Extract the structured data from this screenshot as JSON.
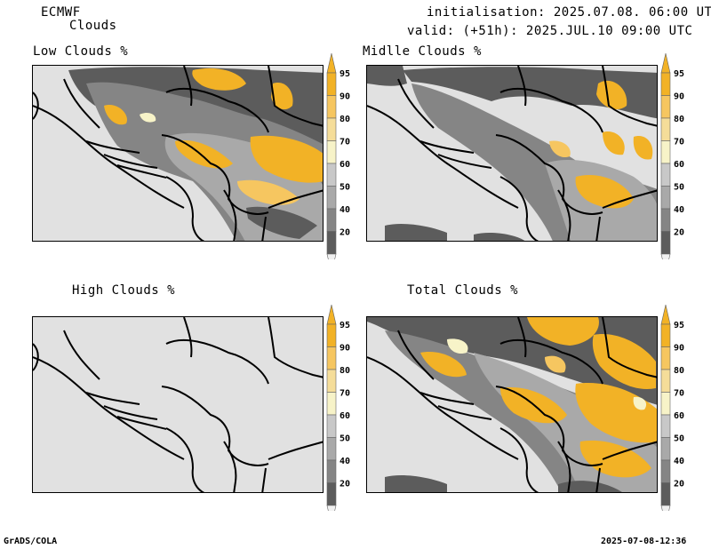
{
  "header": {
    "model": "ECMWF",
    "product": "Clouds",
    "init_line": "initialisation: 2025.07.08. 06:00 UTC",
    "valid_line": "valid: (+51h): 2025.JUL.10 09:00 UTC"
  },
  "panels": [
    {
      "key": "low",
      "title": "Low Clouds %"
    },
    {
      "key": "middle",
      "title": "Midlle Clouds %"
    },
    {
      "key": "high",
      "title": "High Clouds %"
    },
    {
      "key": "total",
      "title": "Total Clouds %"
    }
  ],
  "colorbar": {
    "levels": [
      "95",
      "90",
      "80",
      "70",
      "60",
      "50",
      "40",
      "20"
    ],
    "colors": [
      "#f2b226",
      "#f6c660",
      "#f5dd99",
      "#f7f3c8",
      "#c8c8c8",
      "#a9a9a9",
      "#858585",
      "#5c5c5c"
    ],
    "top_color": "#f2b226",
    "bottom_color": "#f0f0f0"
  },
  "footer": {
    "left": "GrADS/COLA",
    "right": "2025-07-08-12:36"
  },
  "colors": {
    "land_bg": "#e1e1e1",
    "border": "#000000",
    "dark_cloud": "#5c5c5c",
    "mid_gray": "#858585",
    "light_gray": "#a9a9a9",
    "yellow": "#f2b226",
    "light_yellow": "#f6c660",
    "pale_yellow": "#f7f3c8"
  }
}
